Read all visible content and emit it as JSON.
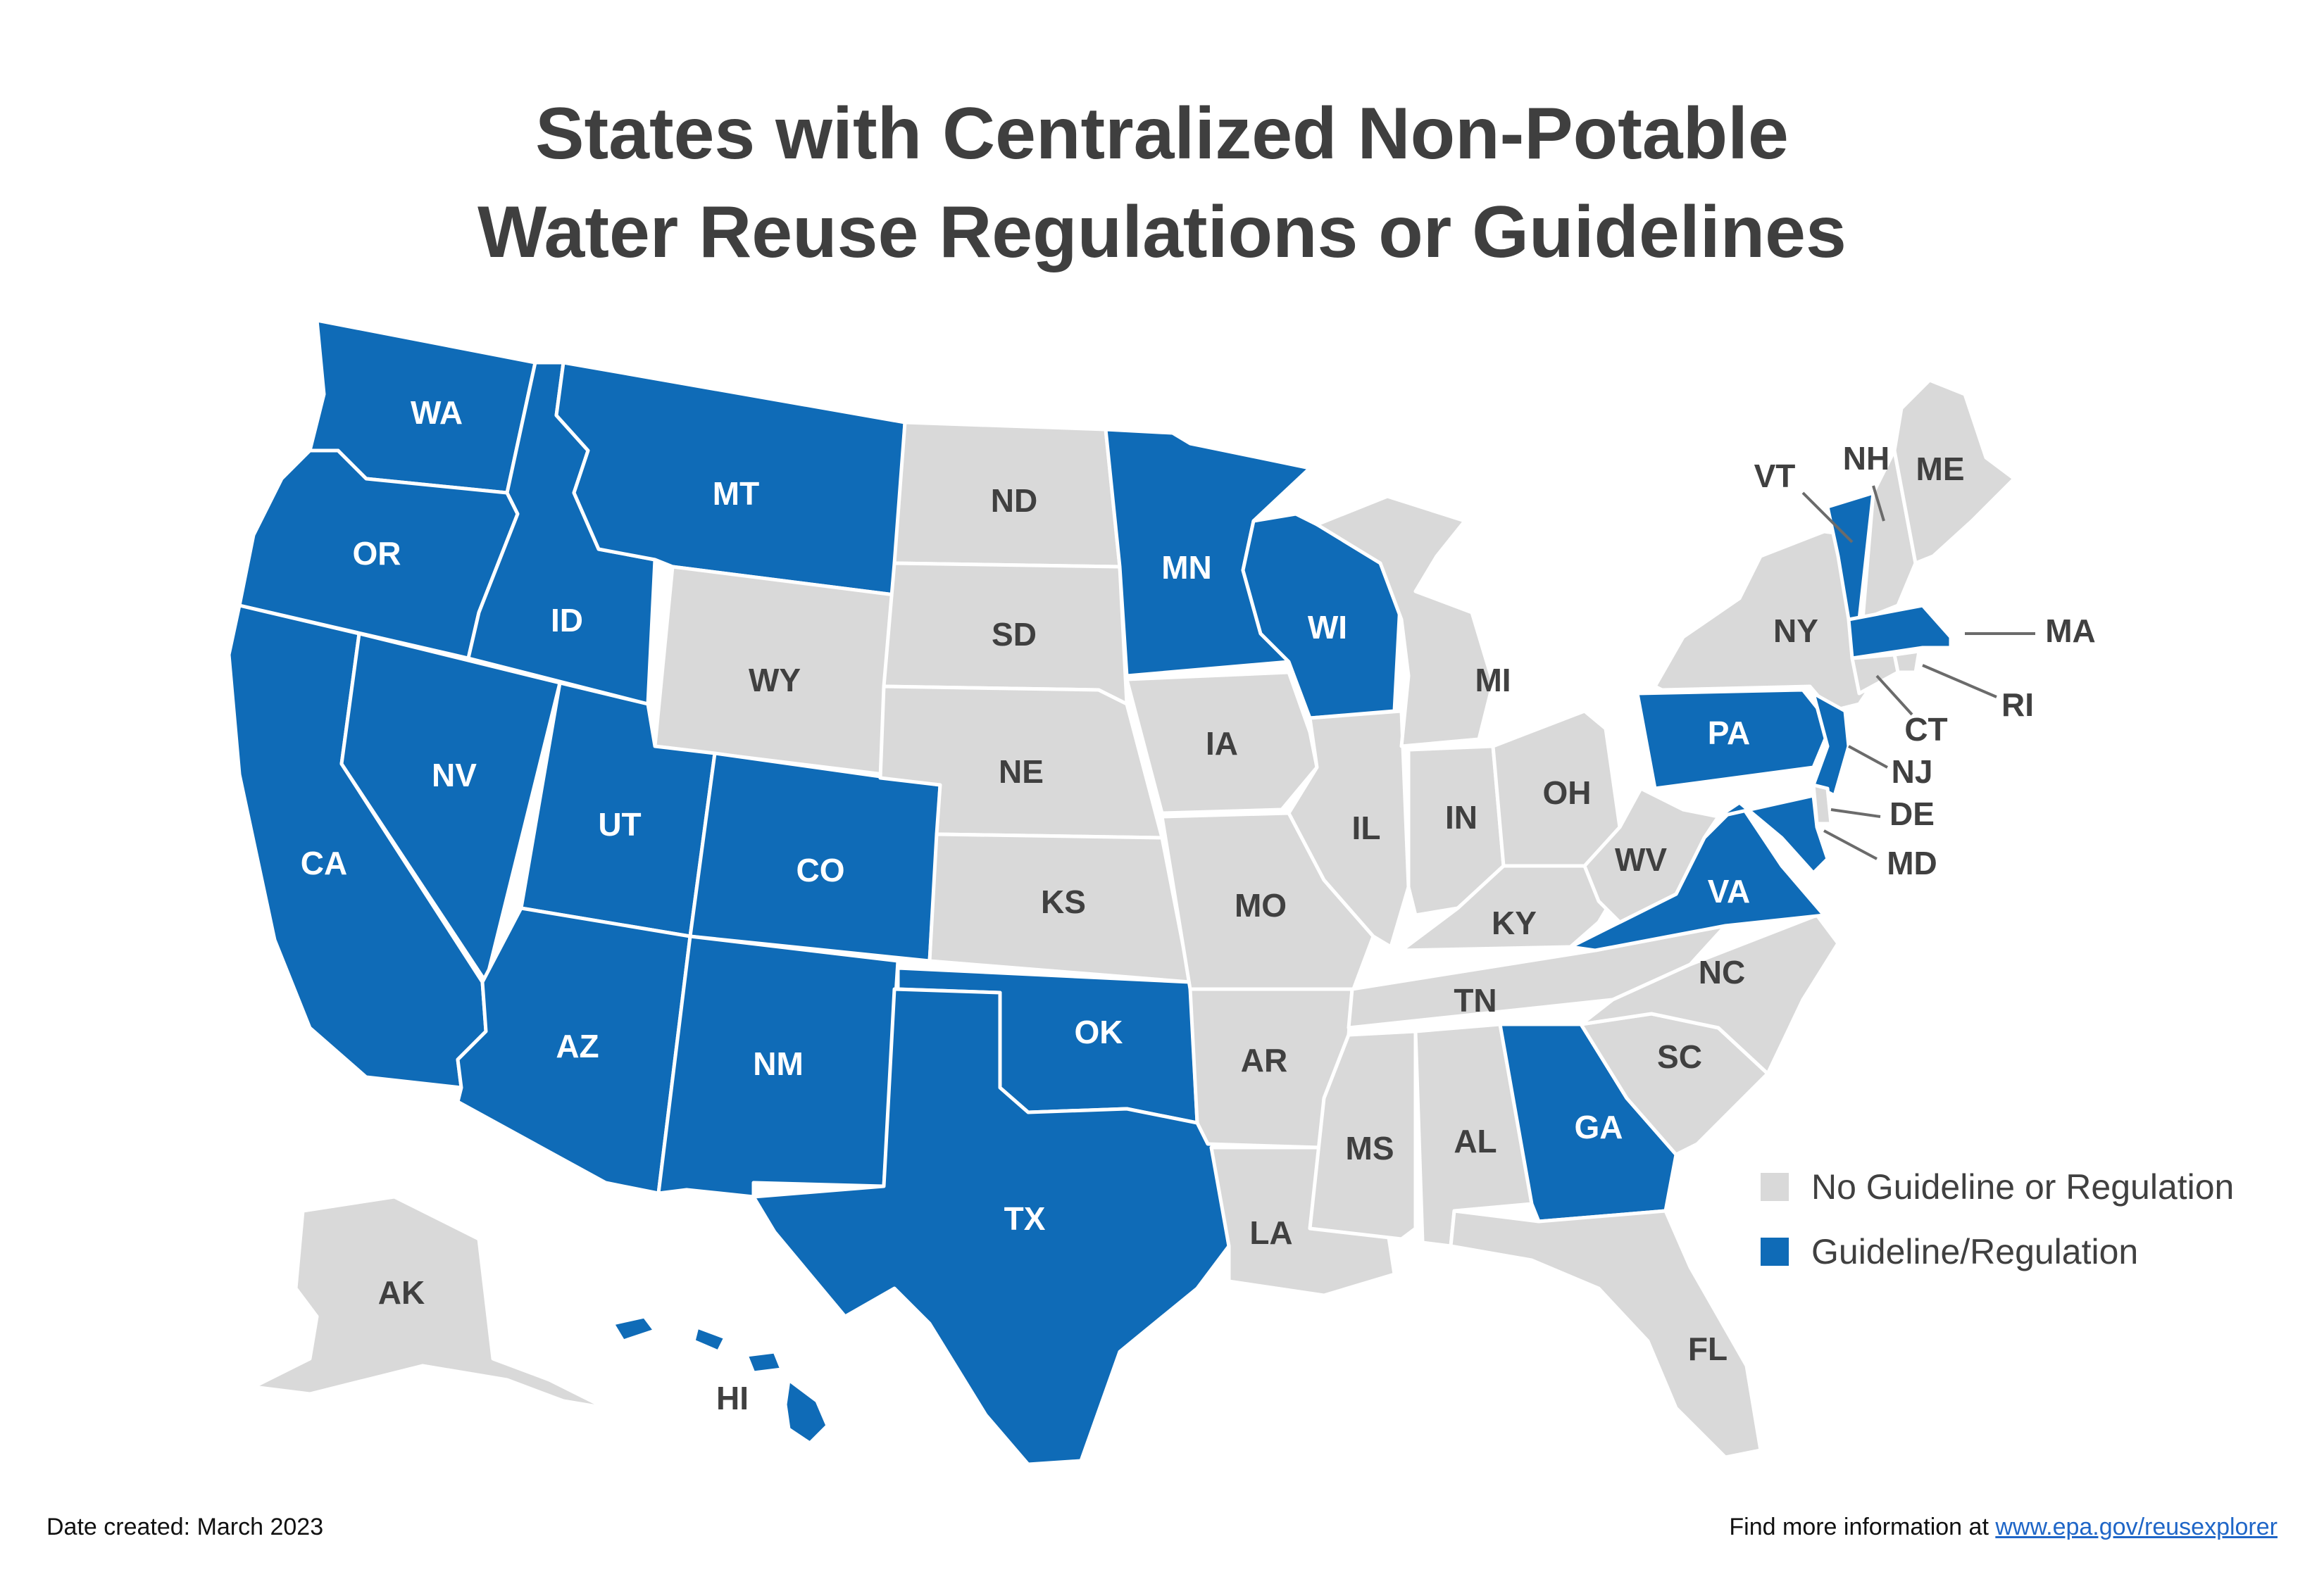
{
  "title": {
    "line1": "States with Centralized Non-Potable",
    "line2": "Water Reuse Regulations or Guidelines"
  },
  "colors": {
    "guideline": "#0f6bb7",
    "none": "#d9d9d9"
  },
  "legend": {
    "none_label": "No Guideline or Regulation",
    "guideline_label": "Guideline/Regulation"
  },
  "states": [
    {
      "abbr": "WA",
      "status": "guideline"
    },
    {
      "abbr": "OR",
      "status": "guideline"
    },
    {
      "abbr": "CA",
      "status": "guideline"
    },
    {
      "abbr": "NV",
      "status": "guideline"
    },
    {
      "abbr": "ID",
      "status": "guideline"
    },
    {
      "abbr": "MT",
      "status": "guideline"
    },
    {
      "abbr": "WY",
      "status": "none"
    },
    {
      "abbr": "UT",
      "status": "guideline"
    },
    {
      "abbr": "CO",
      "status": "guideline"
    },
    {
      "abbr": "AZ",
      "status": "guideline"
    },
    {
      "abbr": "NM",
      "status": "guideline"
    },
    {
      "abbr": "ND",
      "status": "none"
    },
    {
      "abbr": "SD",
      "status": "none"
    },
    {
      "abbr": "NE",
      "status": "none"
    },
    {
      "abbr": "KS",
      "status": "none"
    },
    {
      "abbr": "OK",
      "status": "guideline"
    },
    {
      "abbr": "TX",
      "status": "guideline"
    },
    {
      "abbr": "MN",
      "status": "guideline"
    },
    {
      "abbr": "IA",
      "status": "none"
    },
    {
      "abbr": "MO",
      "status": "none"
    },
    {
      "abbr": "AR",
      "status": "none"
    },
    {
      "abbr": "LA",
      "status": "none"
    },
    {
      "abbr": "WI",
      "status": "guideline"
    },
    {
      "abbr": "IL",
      "status": "none"
    },
    {
      "abbr": "MI",
      "status": "none"
    },
    {
      "abbr": "IN",
      "status": "none"
    },
    {
      "abbr": "OH",
      "status": "none"
    },
    {
      "abbr": "KY",
      "status": "none"
    },
    {
      "abbr": "TN",
      "status": "none"
    },
    {
      "abbr": "MS",
      "status": "none"
    },
    {
      "abbr": "AL",
      "status": "none"
    },
    {
      "abbr": "GA",
      "status": "guideline"
    },
    {
      "abbr": "FL",
      "status": "none"
    },
    {
      "abbr": "SC",
      "status": "none"
    },
    {
      "abbr": "NC",
      "status": "none"
    },
    {
      "abbr": "VA",
      "status": "guideline"
    },
    {
      "abbr": "WV",
      "status": "none"
    },
    {
      "abbr": "PA",
      "status": "guideline"
    },
    {
      "abbr": "NY",
      "status": "none"
    },
    {
      "abbr": "VT",
      "status": "guideline"
    },
    {
      "abbr": "NH",
      "status": "none"
    },
    {
      "abbr": "ME",
      "status": "none"
    },
    {
      "abbr": "MA",
      "status": "guideline"
    },
    {
      "abbr": "RI",
      "status": "none"
    },
    {
      "abbr": "CT",
      "status": "none"
    },
    {
      "abbr": "NJ",
      "status": "guideline"
    },
    {
      "abbr": "DE",
      "status": "none"
    },
    {
      "abbr": "MD",
      "status": "guideline"
    },
    {
      "abbr": "AK",
      "status": "none"
    },
    {
      "abbr": "HI",
      "status": "guideline"
    }
  ],
  "footer": {
    "date_text": "Date created: March 2023",
    "info_prefix": "Find more information at ",
    "info_link": "www.epa.gov/reusexplorer"
  }
}
